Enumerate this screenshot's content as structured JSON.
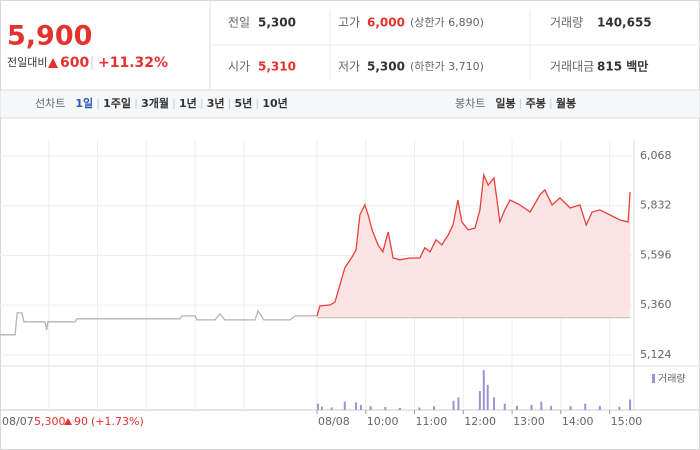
{
  "header": {
    "price": "5,900",
    "change_label": "전일대비",
    "change": "600",
    "change_pct": "+11.32%"
  },
  "stats": [
    [
      {
        "label": "전일",
        "value": "5,300"
      },
      {
        "label": "고가",
        "value": "6,000",
        "note": "(상한가 6,890)"
      },
      {
        "label": "거래량",
        "value": "140,655"
      }
    ],
    [
      {
        "label": "시가",
        "value": "5,310"
      },
      {
        "label": "저가",
        "value": "5,300",
        "note": "(하한가 3,710)"
      },
      {
        "label": "거래대금",
        "value": "815 백만"
      }
    ]
  ],
  "tabs": {
    "line_label": "선차트",
    "line_items": [
      "1일",
      "1주일",
      "3개월",
      "1년",
      "3년",
      "5년",
      "10년"
    ],
    "candle_label": "봉차트",
    "candle_items": [
      "일봉",
      "주봉",
      "월봉"
    ]
  },
  "footer": {
    "price": "5,300",
    "change": "90",
    "change_pct": "(+1.73%)"
  },
  "chart_data": {
    "type": "line",
    "xlim": [
      0,
      13
    ],
    "xticks": [
      {
        "value": 0,
        "label": "08/07"
      },
      {
        "value": 6.5,
        "label": "08/08"
      },
      {
        "value": 7.5,
        "label": "10:00"
      },
      {
        "value": 8.5,
        "label": "11:00"
      },
      {
        "value": 9.5,
        "label": "12:00"
      },
      {
        "value": 10.5,
        "label": "13:00"
      },
      {
        "value": 11.5,
        "label": "14:00"
      },
      {
        "value": 12.5,
        "label": "15:00"
      }
    ],
    "xgrid": [
      1,
      2,
      3,
      4,
      5
    ],
    "ylim": [
      5090,
      6144
    ],
    "yticks": [
      {
        "value": 5124,
        "label": "5,124"
      },
      {
        "value": 5360,
        "label": "5,360"
      },
      {
        "value": 5596,
        "label": "5,596"
      },
      {
        "value": 5832,
        "label": "5,832"
      },
      {
        "value": 6068,
        "label": "6,068"
      }
    ],
    "grid": true,
    "baseline": 5300,
    "series": [
      {
        "color": "#b4b4b4",
        "x": [
          0,
          0.31,
          0.35,
          0.45,
          0.49,
          0.92,
          0.96,
          0.98,
          1.54,
          1.58,
          3.69,
          3.73,
          4.0,
          4.04,
          4.41,
          4.51,
          4.61,
          5.23,
          5.29,
          5.41,
          5.95,
          6.05,
          6.5
        ],
        "values": [
          5219,
          5219,
          5323,
          5323,
          5281,
          5281,
          5243,
          5281,
          5281,
          5295,
          5295,
          5309,
          5309,
          5290,
          5290,
          5319,
          5290,
          5290,
          5333,
          5290,
          5290,
          5309,
          5309
        ]
      },
      {
        "color": "#e8403c",
        "area": "#fde4e4",
        "x": [
          6.5,
          6.56,
          6.77,
          6.87,
          7.07,
          7.22,
          7.3,
          7.38,
          7.48,
          7.55,
          7.63,
          7.75,
          7.85,
          7.96,
          8.06,
          8.2,
          8.41,
          8.61,
          8.71,
          8.82,
          8.94,
          9.06,
          9.19,
          9.29,
          9.39,
          9.47,
          9.6,
          9.74,
          9.84,
          9.92,
          10.01,
          10.13,
          10.25,
          10.35,
          10.46,
          10.66,
          10.87,
          11.07,
          11.17,
          11.32,
          11.48,
          11.69,
          11.89,
          12.02,
          12.14,
          12.3,
          12.51,
          12.71,
          12.88,
          12.92
        ],
        "values": [
          5309,
          5356,
          5361,
          5375,
          5537,
          5589,
          5622,
          5788,
          5836,
          5788,
          5717,
          5646,
          5613,
          5707,
          5584,
          5575,
          5584,
          5584,
          5632,
          5613,
          5670,
          5646,
          5693,
          5741,
          5859,
          5755,
          5717,
          5726,
          5812,
          5978,
          5930,
          5964,
          5755,
          5812,
          5859,
          5836,
          5802,
          5883,
          5907,
          5836,
          5869,
          5821,
          5836,
          5741,
          5802,
          5812,
          5788,
          5764,
          5755,
          5897
        ]
      }
    ],
    "volume": {
      "name": "거래량",
      "color": "#9d92d6",
      "ylim": [
        0,
        10000
      ],
      "x": [
        6.52,
        6.6,
        6.8,
        7.07,
        7.3,
        7.4,
        7.6,
        7.9,
        8.2,
        8.6,
        8.9,
        9.3,
        9.4,
        9.84,
        9.92,
        10.0,
        10.13,
        10.35,
        10.6,
        10.9,
        11.1,
        11.3,
        11.7,
        12.0,
        12.3,
        12.7,
        12.92
      ],
      "values": [
        1500,
        800,
        600,
        2000,
        1800,
        1200,
        900,
        700,
        500,
        600,
        900,
        2200,
        3000,
        4500,
        9500,
        6000,
        3000,
        1500,
        1000,
        1200,
        2000,
        1000,
        900,
        1500,
        1000,
        800,
        2500
      ]
    }
  }
}
